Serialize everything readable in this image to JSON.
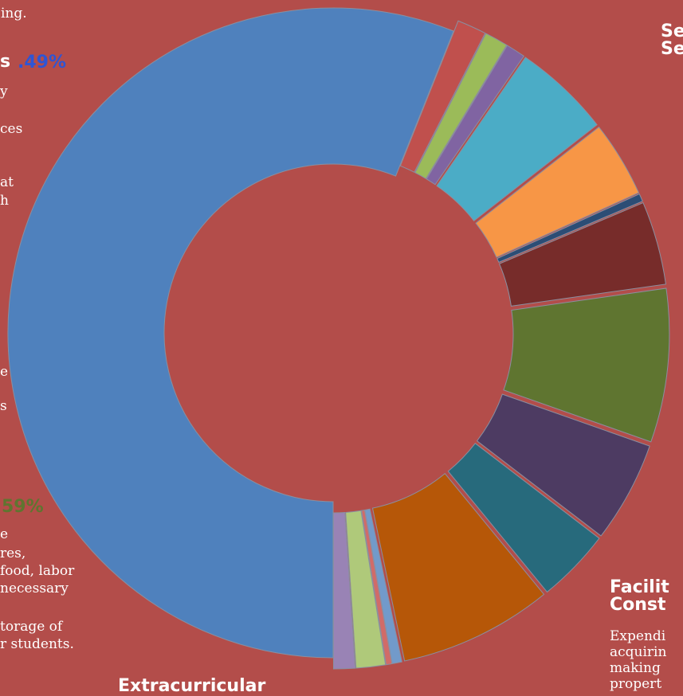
{
  "chart_data": {
    "type": "pie",
    "donut": true,
    "slices": [
      {
        "value": 58.0,
        "color": "#4f81bd",
        "explode": false
      },
      {
        "value": 1.5,
        "color": "#c0504d",
        "explode": true
      },
      {
        "value": 1.2,
        "color": "#9bbb59",
        "explode": true
      },
      {
        "value": 1.0,
        "color": "#8064a2",
        "explode": true
      },
      {
        "value": 5.0,
        "color": "#4bacc6",
        "explode": true
      },
      {
        "value": 3.9,
        "color": "#f79646",
        "explode": true
      },
      {
        "value": 0.4,
        "color": "#2c4d75",
        "explode": true
      },
      {
        "value": 4.3,
        "color": "#772c2a",
        "explode": true
      },
      {
        "value": 7.9,
        "color": "#5f7530",
        "explode": true
      },
      {
        "value": 5.2,
        "color": "#4d3b62",
        "explode": true
      },
      {
        "value": 3.8,
        "color": "#276a7c",
        "explode": true
      },
      {
        "value": 7.9,
        "color": "#b65708",
        "explode": true
      },
      {
        "value": 0.5,
        "color": "#729aca",
        "explode": true
      },
      {
        "value": 0.3,
        "color": "#d16b68",
        "explode": true
      },
      {
        "value": 1.5,
        "color": "#afc97a",
        "explode": true
      },
      {
        "value": 1.1,
        "color": "#9983b5",
        "explode": true
      }
    ]
  },
  "labels": {
    "top_text": "ing.",
    "left_heading": "s",
    "left_percent": ".49%",
    "left_body": [
      "y",
      "ces",
      "at",
      "h"
    ],
    "left_mid": [
      "e",
      "s"
    ],
    "lower_percent": "59%",
    "lower_body": [
      "e",
      "res,",
      "food, labor",
      "necessary"
    ],
    "lower_body2": [
      "torage of",
      "r students."
    ],
    "bottom_heading": "Extracurricular",
    "right_top_heading": [
      "Se",
      "Se"
    ],
    "facilities_heading": [
      "Facilit",
      "Const"
    ],
    "facilities_body": [
      "Expendi",
      "acquirin",
      "making",
      "propert"
    ]
  },
  "colors": {
    "background": "#b34d4a",
    "left_percent": "#2f55d4",
    "lower_percent": "#5f7530",
    "text": "#ffffff"
  }
}
